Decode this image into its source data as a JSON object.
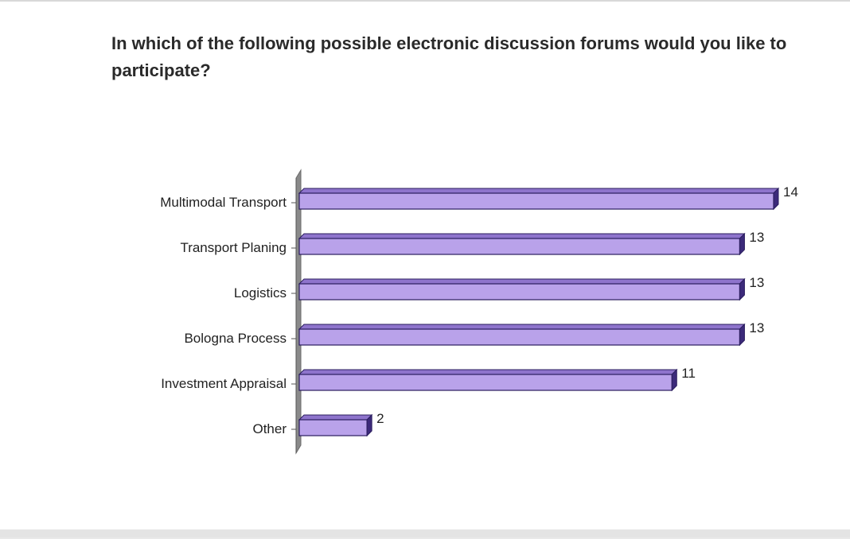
{
  "chart_data": {
    "type": "bar",
    "orientation": "horizontal",
    "title": "In which of the following possible electronic discussion forums would you like to participate?",
    "categories": [
      "Multimodal Transport",
      "Transport Planing",
      "Logistics",
      "Bologna Process",
      "Investment Appraisal",
      "Other"
    ],
    "values": [
      14,
      13,
      13,
      13,
      11,
      2
    ],
    "xlim": [
      0,
      14
    ],
    "grid": false,
    "legend": "none",
    "colors": {
      "bar_front": "#b9a2ea",
      "bar_top": "#8e74cc",
      "bar_side": "#3c2a7a",
      "bar_edge": "#2a1d5e",
      "wall": "#8a8a8a"
    }
  }
}
